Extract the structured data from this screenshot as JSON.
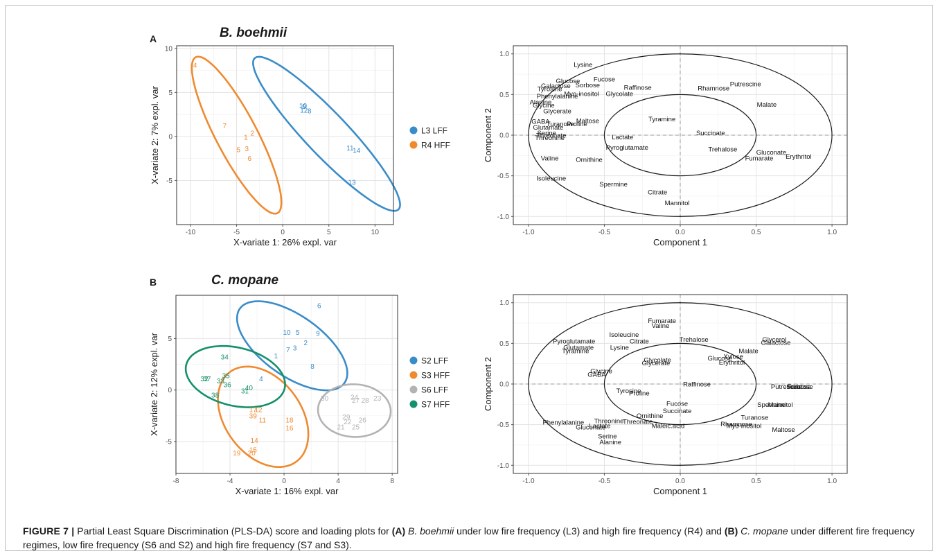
{
  "figure": {
    "panel_a_letter": "A",
    "panel_b_letter": "B",
    "panel_a_title": "B. boehmii",
    "panel_b_title": "C. mopane",
    "caption": {
      "label": "FIGURE 7 |",
      "t1": "Partial Least Square Discrimination (PLS-DA) score and loading plots for",
      "tA": "(A)",
      "s1": "B. boehmii",
      "t2": "under low fire frequency (L3) and high fire frequency (R4) and",
      "tB": "(B)",
      "s2": "C. mopane",
      "t3": "under different fire frequency regimes, low fire frequency (S6 and S2) and high fire frequency (S7 and S3)."
    }
  },
  "chart_data": [
    {
      "type": "scatter",
      "panel": "A-score",
      "xlabel": "X-variate 1: 26% expl. var",
      "ylabel": "X-variate 2: 7% expl. var",
      "xlim": [
        -11.5,
        12
      ],
      "ylim": [
        -10,
        10.3
      ],
      "xticks": [
        -10,
        -5,
        0,
        5,
        10
      ],
      "yticks": [
        -5,
        0,
        5,
        10
      ],
      "grid": true,
      "legend_position": "right",
      "series": [
        {
          "name": "L3 LFF",
          "color": "#3a8cc9",
          "points": [
            {
              "label": "10",
              "x": 2.2,
              "y": 3.5
            },
            {
              "label": "9",
              "x": 2.3,
              "y": 3.4
            },
            {
              "label": "12",
              "x": 2.3,
              "y": 3.0
            },
            {
              "label": "8",
              "x": 2.9,
              "y": 2.9
            },
            {
              "label": "11",
              "x": 7.3,
              "y": -1.3
            },
            {
              "label": "14",
              "x": 8.0,
              "y": -1.6
            },
            {
              "label": "13",
              "x": 7.5,
              "y": -5.2
            }
          ],
          "ellipse": {
            "cx": 4.75,
            "cy": 0.3,
            "rx": 11.6,
            "ry": 2.35,
            "angle_deg": -47.9
          }
        },
        {
          "name": "R4 HFF",
          "color": "#ef8a2f",
          "points": [
            {
              "label": "4",
              "x": -9.5,
              "y": 8.1
            },
            {
              "label": "7",
              "x": -6.3,
              "y": 1.2
            },
            {
              "label": "2",
              "x": -3.3,
              "y": 0.4
            },
            {
              "label": "1",
              "x": -4.0,
              "y": -0.1
            },
            {
              "label": "5",
              "x": -4.8,
              "y": -1.5
            },
            {
              "label": "3",
              "x": -3.9,
              "y": -1.4
            },
            {
              "label": "6",
              "x": -3.6,
              "y": -2.5
            }
          ],
          "ellipse": {
            "cx": -5.0,
            "cy": 0.15,
            "rx": 9.9,
            "ry": 2.25,
            "angle_deg": -63.5
          }
        }
      ]
    },
    {
      "type": "scatter",
      "panel": "A-loading",
      "xlabel": "Component 1",
      "ylabel": "Component 2",
      "xlim": [
        -1.1,
        1.1
      ],
      "ylim": [
        -1.1,
        1.1
      ],
      "xticks": [
        -1.0,
        -0.5,
        0.0,
        0.5,
        1.0
      ],
      "yticks": [
        -1.0,
        -0.5,
        0.0,
        0.5,
        1.0
      ],
      "grid": true,
      "circles": [
        1.0,
        0.5
      ],
      "variables": [
        {
          "label": "Lysine",
          "x": -0.64,
          "y": 0.87
        },
        {
          "label": "Fucose",
          "x": -0.5,
          "y": 0.69
        },
        {
          "label": "Glucose",
          "x": -0.74,
          "y": 0.67
        },
        {
          "label": "Galactose",
          "x": -0.82,
          "y": 0.61
        },
        {
          "label": "Sorbose",
          "x": -0.61,
          "y": 0.62
        },
        {
          "label": "Tyrosine",
          "x": -0.86,
          "y": 0.57
        },
        {
          "label": "Raffinose",
          "x": -0.28,
          "y": 0.59
        },
        {
          "label": "Glycolate",
          "x": -0.4,
          "y": 0.51
        },
        {
          "label": "Myo-inositol",
          "x": -0.65,
          "y": 0.51
        },
        {
          "label": "Phenylalanine",
          "x": -0.81,
          "y": 0.48
        },
        {
          "label": "Alanine",
          "x": -0.92,
          "y": 0.41
        },
        {
          "label": "Glycine",
          "x": -0.9,
          "y": 0.37
        },
        {
          "label": "Glycerate",
          "x": -0.81,
          "y": 0.3
        },
        {
          "label": "Rhamnose",
          "x": 0.22,
          "y": 0.58
        },
        {
          "label": "Putrescine",
          "x": 0.43,
          "y": 0.63
        },
        {
          "label": "Malate",
          "x": 0.57,
          "y": 0.38
        },
        {
          "label": "GABA",
          "x": -0.92,
          "y": 0.17
        },
        {
          "label": "Turanose",
          "x": -0.79,
          "y": 0.14
        },
        {
          "label": "Maltose",
          "x": -0.61,
          "y": 0.18
        },
        {
          "label": "Proline",
          "x": -0.68,
          "y": 0.14
        },
        {
          "label": "Glutamate",
          "x": -0.87,
          "y": 0.1
        },
        {
          "label": "Serine",
          "x": -0.88,
          "y": 0.03
        },
        {
          "label": "Threonate",
          "x": -0.85,
          "y": 0.0
        },
        {
          "label": "Threonine",
          "x": -0.86,
          "y": -0.03
        },
        {
          "label": "Tyramine",
          "x": -0.12,
          "y": 0.2
        },
        {
          "label": "Succinate",
          "x": 0.2,
          "y": 0.03
        },
        {
          "label": "Lactate",
          "x": -0.38,
          "y": -0.02
        },
        {
          "label": "Pyroglutamate",
          "x": -0.35,
          "y": -0.15
        },
        {
          "label": "Trehalose",
          "x": 0.28,
          "y": -0.17
        },
        {
          "label": "Gluconate",
          "x": 0.6,
          "y": -0.21
        },
        {
          "label": "Fumarate",
          "x": 0.52,
          "y": -0.28
        },
        {
          "label": "Erythritol",
          "x": 0.78,
          "y": -0.26
        },
        {
          "label": "Valine",
          "x": -0.86,
          "y": -0.28
        },
        {
          "label": "Ornithine",
          "x": -0.6,
          "y": -0.3
        },
        {
          "label": "Isoleucine",
          "x": -0.85,
          "y": -0.53
        },
        {
          "label": "Spermine",
          "x": -0.44,
          "y": -0.6
        },
        {
          "label": "Citrate",
          "x": -0.15,
          "y": -0.7
        },
        {
          "label": "Mannitol",
          "x": -0.02,
          "y": -0.83
        }
      ]
    },
    {
      "type": "scatter",
      "panel": "B-score",
      "xlabel": "X-variate 1: 16% expl. var",
      "ylabel": "X-variate 2: 12% expl. var",
      "xlim": [
        -8,
        8.4
      ],
      "ylim": [
        -8.1,
        9.2
      ],
      "xticks": [
        -8,
        -4,
        0,
        4,
        8
      ],
      "yticks": [
        -5,
        0,
        5
      ],
      "grid": true,
      "legend_position": "right",
      "series": [
        {
          "name": "S2 LFF",
          "color": "#3a8cc9",
          "points": [
            {
              "label": "6",
              "x": 2.6,
              "y": 8.2
            },
            {
              "label": "10",
              "x": 0.2,
              "y": 5.6
            },
            {
              "label": "5",
              "x": 1.0,
              "y": 5.6
            },
            {
              "label": "9",
              "x": 2.5,
              "y": 5.5
            },
            {
              "label": "2",
              "x": 1.6,
              "y": 4.6
            },
            {
              "label": "3",
              "x": 0.8,
              "y": 4.1
            },
            {
              "label": "7",
              "x": 0.3,
              "y": 3.9
            },
            {
              "label": "1",
              "x": -0.6,
              "y": 3.3
            },
            {
              "label": "8",
              "x": 2.1,
              "y": 2.3
            },
            {
              "label": "4",
              "x": -1.7,
              "y": 1.1
            }
          ],
          "ellipse": {
            "cx": 0.6,
            "cy": 4.3,
            "rx": 5.35,
            "ry": 2.6,
            "angle_deg": -47.7
          }
        },
        {
          "name": "S3 HFF",
          "color": "#ef8a2f",
          "points": [
            {
              "label": "17",
              "x": -2.3,
              "y": -1.9
            },
            {
              "label": "12",
              "x": -1.9,
              "y": -1.9
            },
            {
              "label": "39",
              "x": -2.3,
              "y": -2.5
            },
            {
              "label": "11",
              "x": -1.6,
              "y": -2.9
            },
            {
              "label": "18",
              "x": 0.4,
              "y": -2.9
            },
            {
              "label": "16",
              "x": 0.4,
              "y": -3.7
            },
            {
              "label": "14",
              "x": -2.2,
              "y": -4.9
            },
            {
              "label": "15",
              "x": -2.3,
              "y": -5.8
            },
            {
              "label": "19",
              "x": -3.5,
              "y": -6.1
            },
            {
              "label": "20",
              "x": -2.4,
              "y": -6.1
            }
          ],
          "ellipse": {
            "cx": -1.55,
            "cy": -2.6,
            "rx": 3.0,
            "ry": 5.1,
            "angle_deg": 21
          }
        },
        {
          "name": "S6 LFF",
          "color": "#b3b3b3",
          "points": [
            {
              "label": "30",
              "x": 3.0,
              "y": -0.8
            },
            {
              "label": "24",
              "x": 5.2,
              "y": -0.7
            },
            {
              "label": "27",
              "x": 5.3,
              "y": -1.0
            },
            {
              "label": "28",
              "x": 6.0,
              "y": -1.0
            },
            {
              "label": "23",
              "x": 6.9,
              "y": -0.8
            },
            {
              "label": "29",
              "x": 4.6,
              "y": -2.6
            },
            {
              "label": "22",
              "x": 4.7,
              "y": -3.1
            },
            {
              "label": "26",
              "x": 5.8,
              "y": -2.9
            },
            {
              "label": "21",
              "x": 4.2,
              "y": -3.6
            },
            {
              "label": "25",
              "x": 5.3,
              "y": -3.6
            }
          ],
          "ellipse": {
            "cx": 5.2,
            "cy": -2.0,
            "rx": 2.7,
            "ry": 2.55,
            "angle_deg": -15
          }
        },
        {
          "name": "S7 HFF",
          "color": "#14906b",
          "points": [
            {
              "label": "34",
              "x": -4.4,
              "y": 3.2
            },
            {
              "label": "32",
              "x": -5.9,
              "y": 1.1
            },
            {
              "label": "37",
              "x": -5.7,
              "y": 1.1
            },
            {
              "label": "35",
              "x": -4.3,
              "y": 1.4
            },
            {
              "label": "33",
              "x": -4.7,
              "y": 0.9
            },
            {
              "label": "36",
              "x": -4.2,
              "y": 0.5
            },
            {
              "label": "31",
              "x": -2.9,
              "y": -0.1
            },
            {
              "label": "40",
              "x": -2.6,
              "y": 0.2
            },
            {
              "label": "38",
              "x": -5.1,
              "y": -0.5
            }
          ],
          "ellipse": {
            "cx": -3.6,
            "cy": 1.3,
            "rx": 3.85,
            "ry": 2.75,
            "angle_deg": -25
          }
        }
      ]
    },
    {
      "type": "scatter",
      "panel": "B-loading",
      "xlabel": "Component 1",
      "ylabel": "Component 2",
      "xlim": [
        -1.1,
        1.1
      ],
      "ylim": [
        -1.1,
        1.1
      ],
      "xticks": [
        -1.0,
        -0.5,
        0.0,
        0.5,
        1.0
      ],
      "yticks": [
        -1.0,
        -0.5,
        0.0,
        0.5,
        1.0
      ],
      "grid": true,
      "circles": [
        1.0,
        0.5
      ],
      "variables": [
        {
          "label": "Fumarate",
          "x": -0.12,
          "y": 0.78
        },
        {
          "label": "Valine",
          "x": -0.13,
          "y": 0.72
        },
        {
          "label": "Isoleucine",
          "x": -0.37,
          "y": 0.61
        },
        {
          "label": "Citrate",
          "x": -0.27,
          "y": 0.53
        },
        {
          "label": "Trehalose",
          "x": 0.09,
          "y": 0.55
        },
        {
          "label": "Pyroglutamate",
          "x": -0.7,
          "y": 0.53
        },
        {
          "label": "Lysine",
          "x": -0.4,
          "y": 0.45
        },
        {
          "label": "Glutamate",
          "x": -0.67,
          "y": 0.45
        },
        {
          "label": "Tyramine",
          "x": -0.69,
          "y": 0.41
        },
        {
          "label": "Glycerol",
          "x": 0.62,
          "y": 0.55
        },
        {
          "label": "Galactose",
          "x": 0.63,
          "y": 0.51
        },
        {
          "label": "Malate",
          "x": 0.45,
          "y": 0.41
        },
        {
          "label": "Xylose",
          "x": 0.35,
          "y": 0.34
        },
        {
          "label": "Glucose",
          "x": 0.26,
          "y": 0.32
        },
        {
          "label": "Erythritol",
          "x": 0.34,
          "y": 0.27
        },
        {
          "label": "Glycolate",
          "x": -0.15,
          "y": 0.3
        },
        {
          "label": "Glycerate",
          "x": -0.16,
          "y": 0.26
        },
        {
          "label": "Glycine",
          "x": -0.52,
          "y": 0.16
        },
        {
          "label": "GABA",
          "x": -0.55,
          "y": 0.12
        },
        {
          "label": "Raffinose",
          "x": 0.11,
          "y": 0.0
        },
        {
          "label": "Putrescine",
          "x": 0.7,
          "y": -0.03
        },
        {
          "label": "Sorbose",
          "x": 0.78,
          "y": -0.03
        },
        {
          "label": "Fructose",
          "x": 0.79,
          "y": -0.03
        },
        {
          "label": "Tyrosine",
          "x": -0.34,
          "y": -0.08
        },
        {
          "label": "Proline",
          "x": -0.27,
          "y": -0.11
        },
        {
          "label": "Fucose",
          "x": -0.02,
          "y": -0.24
        },
        {
          "label": "Succinate",
          "x": -0.02,
          "y": -0.33
        },
        {
          "label": "Spermine",
          "x": 0.6,
          "y": -0.25
        },
        {
          "label": "Mannitol",
          "x": 0.66,
          "y": -0.25
        },
        {
          "label": "Ornithine",
          "x": -0.2,
          "y": -0.39
        },
        {
          "label": "Turanose",
          "x": 0.49,
          "y": -0.41
        },
        {
          "label": "Rhamnose",
          "x": 0.37,
          "y": -0.49
        },
        {
          "label": "Myo-inositol",
          "x": 0.42,
          "y": -0.51
        },
        {
          "label": "Maltose",
          "x": 0.68,
          "y": -0.56
        },
        {
          "label": "Threonine",
          "x": -0.47,
          "y": -0.45
        },
        {
          "label": "Threonate",
          "x": -0.28,
          "y": -0.46
        },
        {
          "label": "Phenylalanine",
          "x": -0.77,
          "y": -0.47
        },
        {
          "label": "Lactate",
          "x": -0.53,
          "y": -0.51
        },
        {
          "label": "Gluconate",
          "x": -0.59,
          "y": -0.53
        },
        {
          "label": "Maleic.acid",
          "x": -0.08,
          "y": -0.51
        },
        {
          "label": "Serine",
          "x": -0.48,
          "y": -0.64
        },
        {
          "label": "Alanine",
          "x": -0.46,
          "y": -0.71
        }
      ]
    }
  ]
}
